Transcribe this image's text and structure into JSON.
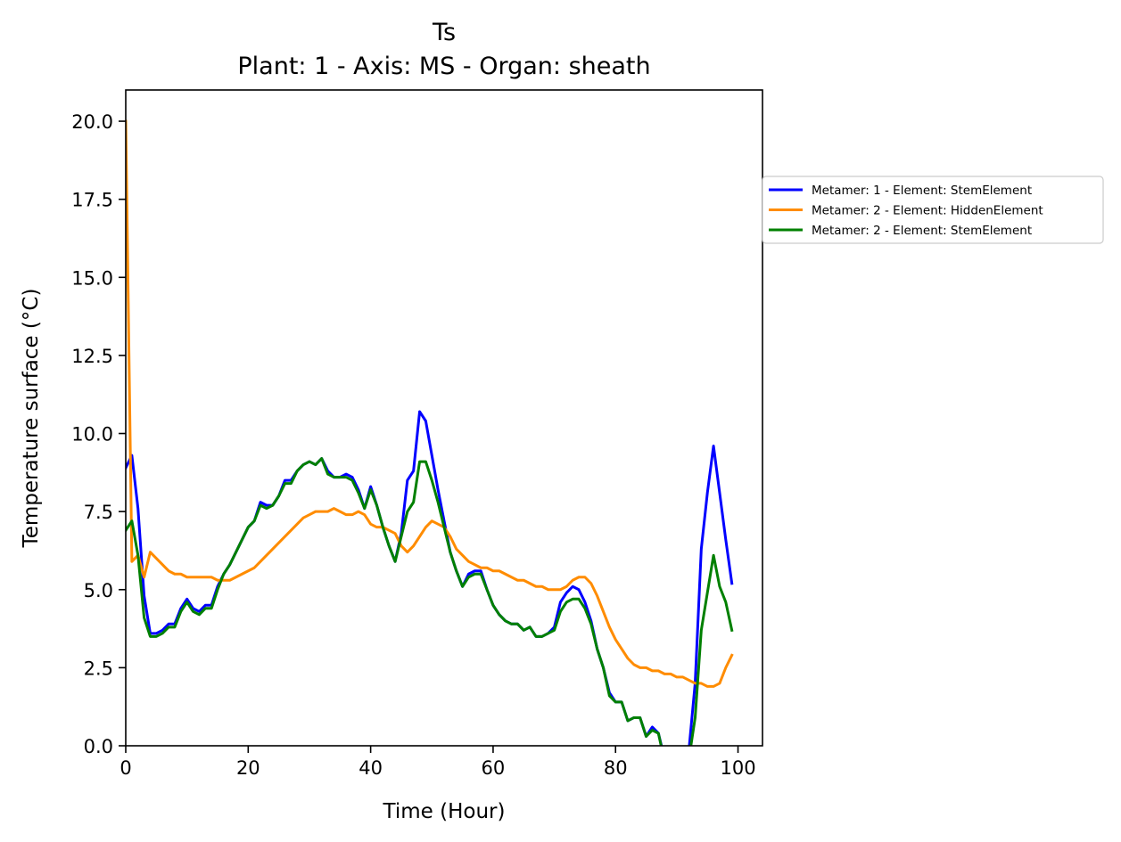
{
  "chart_data": {
    "type": "line",
    "title": "Ts",
    "subtitle": "Plant: 1 - Axis: MS - Organ: sheath",
    "xlabel": "Time (Hour)",
    "ylabel": "Temperature surface (°C)",
    "xlim": [
      0,
      104
    ],
    "ylim": [
      0,
      21
    ],
    "xticks": [
      0,
      20,
      40,
      60,
      80,
      100
    ],
    "yticks": [
      0.0,
      2.5,
      5.0,
      7.5,
      10.0,
      12.5,
      15.0,
      17.5,
      20.0
    ],
    "xtick_labels": [
      "0",
      "20",
      "40",
      "60",
      "80",
      "100"
    ],
    "ytick_labels": [
      "0.0",
      "2.5",
      "5.0",
      "7.5",
      "10.0",
      "12.5",
      "15.0",
      "17.5",
      "20.0"
    ],
    "grid": false,
    "legend_position": "outside-right-top",
    "series": [
      {
        "name": "Metamer: 1 - Element: StemElement",
        "color": "#0000ff",
        "x": [
          0,
          1,
          2,
          3,
          4,
          5,
          6,
          7,
          8,
          9,
          10,
          11,
          12,
          13,
          14,
          15,
          16,
          17,
          18,
          19,
          20,
          21,
          22,
          23,
          24,
          25,
          26,
          27,
          28,
          29,
          30,
          31,
          32,
          33,
          34,
          35,
          36,
          37,
          38,
          39,
          40,
          41,
          42,
          43,
          44,
          45,
          46,
          47,
          48,
          49,
          50,
          51,
          52,
          53,
          54,
          55,
          56,
          57,
          58,
          59,
          60,
          61,
          62,
          63,
          64,
          65,
          66,
          67,
          68,
          69,
          70,
          71,
          72,
          73,
          74,
          75,
          76,
          77,
          78,
          79,
          80,
          81,
          82,
          83,
          84,
          85,
          86,
          87,
          88,
          89,
          90,
          91,
          92,
          93,
          94,
          95,
          96,
          97,
          98,
          99
        ],
        "y": [
          8.9,
          9.3,
          7.6,
          4.8,
          3.6,
          3.6,
          3.7,
          3.9,
          3.9,
          4.4,
          4.7,
          4.4,
          4.3,
          4.5,
          4.5,
          5.1,
          5.5,
          5.8,
          6.2,
          6.6,
          7.0,
          7.2,
          7.8,
          7.7,
          7.7,
          8.0,
          8.5,
          8.5,
          8.8,
          9.0,
          9.1,
          9.0,
          9.2,
          8.8,
          8.6,
          8.6,
          8.7,
          8.6,
          8.2,
          7.6,
          8.3,
          7.7,
          7.0,
          6.4,
          5.9,
          6.8,
          8.5,
          8.8,
          10.7,
          10.4,
          9.3,
          8.2,
          7.2,
          6.2,
          5.6,
          5.1,
          5.5,
          5.6,
          5.6,
          5.0,
          4.5,
          4.2,
          4.0,
          3.9,
          3.9,
          3.7,
          3.8,
          3.5,
          3.5,
          3.6,
          3.8,
          4.6,
          4.9,
          5.1,
          5.0,
          4.6,
          4.0,
          3.1,
          2.5,
          1.7,
          1.4,
          1.4,
          0.8,
          0.9,
          0.9,
          0.3,
          0.6,
          0.4,
          -0.4,
          -0.8,
          -0.9,
          -0.7,
          -0.1,
          2.0,
          6.3,
          8.1,
          9.6,
          8.1,
          6.6,
          5.2
        ]
      },
      {
        "name": "Metamer: 2 - Element: HiddenElement",
        "color": "#ff8c00",
        "x": [
          0,
          1,
          2,
          3,
          4,
          5,
          6,
          7,
          8,
          9,
          10,
          11,
          12,
          13,
          14,
          15,
          16,
          17,
          18,
          19,
          20,
          21,
          22,
          23,
          24,
          25,
          26,
          27,
          28,
          29,
          30,
          31,
          32,
          33,
          34,
          35,
          36,
          37,
          38,
          39,
          40,
          41,
          42,
          43,
          44,
          45,
          46,
          47,
          48,
          49,
          50,
          51,
          52,
          53,
          54,
          55,
          56,
          57,
          58,
          59,
          60,
          61,
          62,
          63,
          64,
          65,
          66,
          67,
          68,
          69,
          70,
          71,
          72,
          73,
          74,
          75,
          76,
          77,
          78,
          79,
          80,
          81,
          82,
          83,
          84,
          85,
          86,
          87,
          88,
          89,
          90,
          91,
          92,
          93,
          94,
          95,
          96,
          97,
          98,
          99
        ],
        "y": [
          20.0,
          5.9,
          6.1,
          5.4,
          6.2,
          6.0,
          5.8,
          5.6,
          5.5,
          5.5,
          5.4,
          5.4,
          5.4,
          5.4,
          5.4,
          5.3,
          5.3,
          5.3,
          5.4,
          5.5,
          5.6,
          5.7,
          5.9,
          6.1,
          6.3,
          6.5,
          6.7,
          6.9,
          7.1,
          7.3,
          7.4,
          7.5,
          7.5,
          7.5,
          7.6,
          7.5,
          7.4,
          7.4,
          7.5,
          7.4,
          7.1,
          7.0,
          7.0,
          6.9,
          6.8,
          6.4,
          6.2,
          6.4,
          6.7,
          7.0,
          7.2,
          7.1,
          7.0,
          6.7,
          6.3,
          6.1,
          5.9,
          5.8,
          5.7,
          5.7,
          5.6,
          5.6,
          5.5,
          5.4,
          5.3,
          5.3,
          5.2,
          5.1,
          5.1,
          5.0,
          5.0,
          5.0,
          5.1,
          5.3,
          5.4,
          5.4,
          5.2,
          4.8,
          4.3,
          3.8,
          3.4,
          3.1,
          2.8,
          2.6,
          2.5,
          2.5,
          2.4,
          2.4,
          2.3,
          2.3,
          2.2,
          2.2,
          2.1,
          2.0,
          2.0,
          1.9,
          1.9,
          2.0,
          2.5,
          2.9
        ]
      },
      {
        "name": "Metamer: 2 - Element: StemElement",
        "color": "#008000",
        "x": [
          0,
          1,
          2,
          3,
          4,
          5,
          6,
          7,
          8,
          9,
          10,
          11,
          12,
          13,
          14,
          15,
          16,
          17,
          18,
          19,
          20,
          21,
          22,
          23,
          24,
          25,
          26,
          27,
          28,
          29,
          30,
          31,
          32,
          33,
          34,
          35,
          36,
          37,
          38,
          39,
          40,
          41,
          42,
          43,
          44,
          45,
          46,
          47,
          48,
          49,
          50,
          51,
          52,
          53,
          54,
          55,
          56,
          57,
          58,
          59,
          60,
          61,
          62,
          63,
          64,
          65,
          66,
          67,
          68,
          69,
          70,
          71,
          72,
          73,
          74,
          75,
          76,
          77,
          78,
          79,
          80,
          81,
          82,
          83,
          84,
          85,
          86,
          87,
          88,
          89,
          90,
          91,
          92,
          93,
          94,
          95,
          96,
          97,
          98,
          99
        ],
        "y": [
          6.9,
          7.2,
          6.1,
          4.1,
          3.5,
          3.5,
          3.6,
          3.8,
          3.8,
          4.3,
          4.6,
          4.3,
          4.2,
          4.4,
          4.4,
          5.0,
          5.5,
          5.8,
          6.2,
          6.6,
          7.0,
          7.2,
          7.7,
          7.6,
          7.7,
          8.0,
          8.4,
          8.4,
          8.8,
          9.0,
          9.1,
          9.0,
          9.2,
          8.7,
          8.6,
          8.6,
          8.6,
          8.5,
          8.1,
          7.6,
          8.2,
          7.7,
          7.0,
          6.4,
          5.9,
          6.7,
          7.5,
          7.8,
          9.1,
          9.1,
          8.5,
          7.8,
          7.0,
          6.2,
          5.6,
          5.1,
          5.4,
          5.5,
          5.5,
          5.0,
          4.5,
          4.2,
          4.0,
          3.9,
          3.9,
          3.7,
          3.8,
          3.5,
          3.5,
          3.6,
          3.7,
          4.3,
          4.6,
          4.7,
          4.7,
          4.4,
          3.9,
          3.1,
          2.5,
          1.6,
          1.4,
          1.4,
          0.8,
          0.9,
          0.9,
          0.3,
          0.5,
          0.4,
          -0.5,
          -0.9,
          -1.0,
          -0.8,
          -0.4,
          0.9,
          3.7,
          4.9,
          6.1,
          5.1,
          4.6,
          3.7
        ]
      }
    ]
  }
}
